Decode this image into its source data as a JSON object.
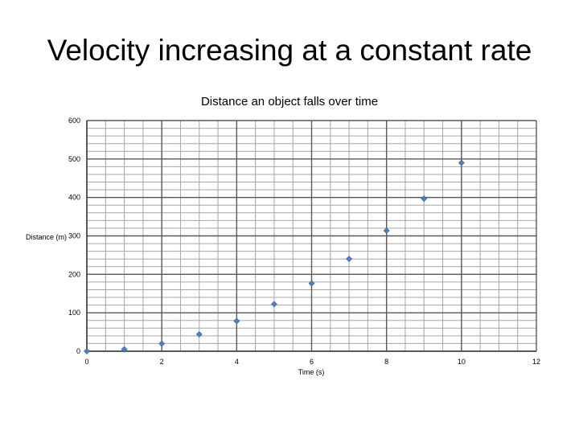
{
  "slide_title": "Velocity increasing at a constant rate",
  "chart_data": {
    "type": "scatter",
    "title": "Distance an object falls over time",
    "xlabel": "Time (s)",
    "ylabel": "Distance (m)",
    "xlim": [
      0,
      12
    ],
    "ylim": [
      0,
      600
    ],
    "xticks": [
      0,
      2,
      4,
      6,
      8,
      10,
      12
    ],
    "yticks": [
      0,
      100,
      200,
      300,
      400,
      500,
      600
    ],
    "grid": true,
    "marker_color": "#4f81bd",
    "points": [
      {
        "x": 0,
        "y": 0
      },
      {
        "x": 1,
        "y": 4.9
      },
      {
        "x": 2,
        "y": 19.6
      },
      {
        "x": 3,
        "y": 44.1
      },
      {
        "x": 4,
        "y": 78.4
      },
      {
        "x": 5,
        "y": 122.5
      },
      {
        "x": 6,
        "y": 176.4
      },
      {
        "x": 7,
        "y": 240.1
      },
      {
        "x": 8,
        "y": 313.6
      },
      {
        "x": 9,
        "y": 396.9
      },
      {
        "x": 10,
        "y": 490
      }
    ]
  }
}
